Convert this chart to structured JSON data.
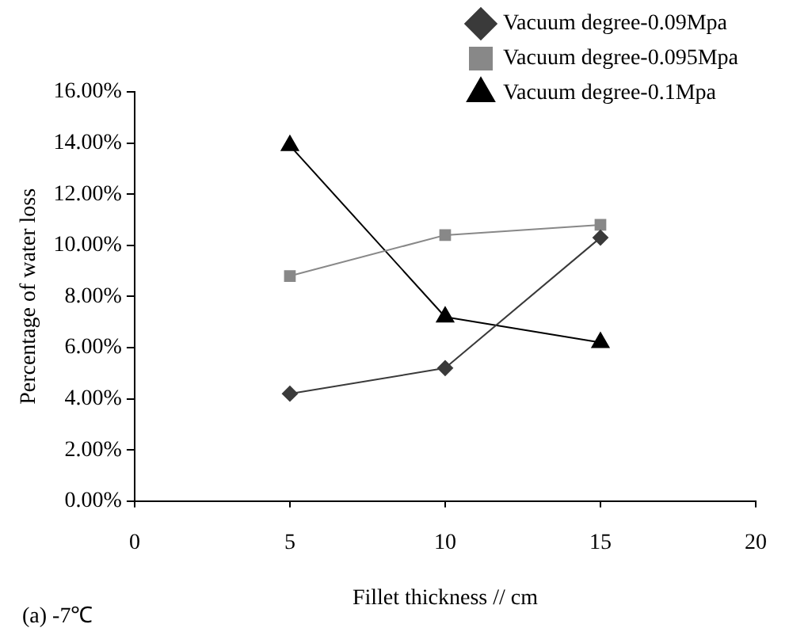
{
  "chart_data": {
    "type": "line",
    "xlabel": "Fillet thickness // cm",
    "ylabel": "Percentage of water loss",
    "annotations": [
      "(a) -7℃"
    ],
    "x": [
      5,
      10,
      15
    ],
    "series": [
      {
        "name": "Vacuum degree-0.09Mpa",
        "color": "#3a3a3a",
        "marker": "diamond",
        "values": [
          4.2,
          5.2,
          10.3
        ]
      },
      {
        "name": "Vacuum degree-0.095Mpa",
        "color": "#888888",
        "marker": "square",
        "values": [
          8.8,
          10.4,
          10.8
        ]
      },
      {
        "name": "Vacuum degree-0.1Mpa",
        "color": "#000000",
        "marker": "triangle",
        "values": [
          13.9,
          7.2,
          6.2
        ]
      }
    ],
    "xlim": [
      0,
      20
    ],
    "xticks": [
      0,
      5,
      10,
      15,
      20
    ],
    "ylim": [
      0,
      16
    ],
    "yticks": [
      {
        "value": 0,
        "label": "0.00%"
      },
      {
        "value": 2,
        "label": "2.00%"
      },
      {
        "value": 4,
        "label": "4.00%"
      },
      {
        "value": 6,
        "label": "6.00%"
      },
      {
        "value": 8,
        "label": "8.00%"
      },
      {
        "value": 10,
        "label": "10.00%"
      },
      {
        "value": 12,
        "label": "12.00%"
      },
      {
        "value": 14,
        "label": "14.00%"
      },
      {
        "value": 16,
        "label": "16.00%"
      }
    ],
    "grid": false,
    "legend": "top right",
    "line_style": "solid"
  }
}
